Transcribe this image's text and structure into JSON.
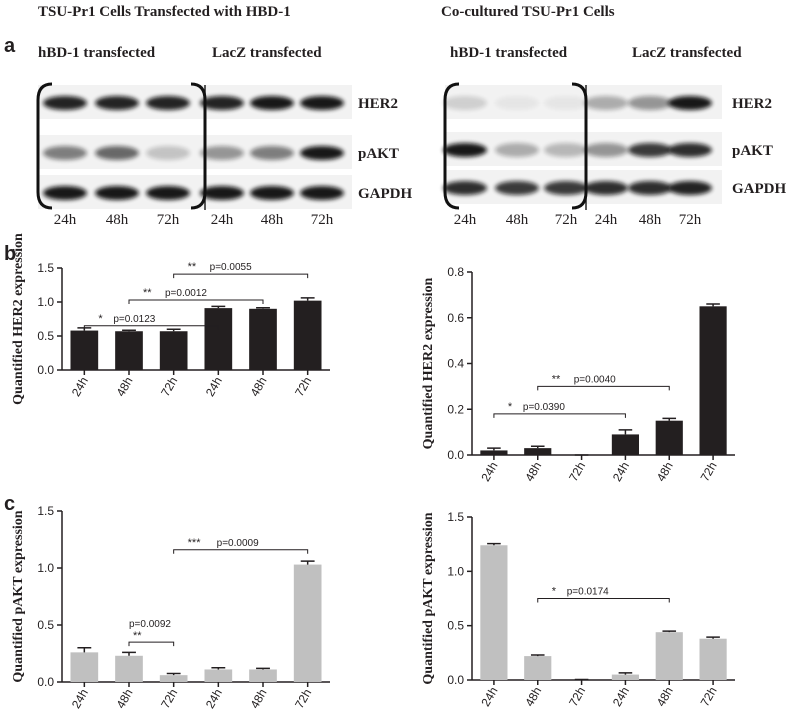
{
  "figure": {
    "panel_labels": [
      "a",
      "b",
      "c"
    ]
  },
  "blots": [
    {
      "title": "TSU-Pr1 Cells Transfected with HBD-1",
      "groups": [
        "hBD-1 transfected",
        "LacZ transfected"
      ],
      "rows": [
        "HER2",
        "pAKT",
        "GAPDH"
      ],
      "lanes": [
        "24h",
        "48h",
        "72h",
        "24h",
        "48h",
        "72h"
      ]
    },
    {
      "title": "Co-cultured TSU-Pr1 Cells",
      "groups": [
        "hBD-1 transfected",
        "LacZ transfected"
      ],
      "rows": [
        "HER2",
        "pAKT",
        "GAPDH"
      ],
      "lanes": [
        "24h",
        "48h",
        "72h",
        "24h",
        "48h",
        "72h"
      ]
    }
  ],
  "chart_data": [
    {
      "type": "bar",
      "y_label": "Quantified HER2 expression",
      "categories": [
        "24h",
        "48h",
        "72h",
        "24h",
        "48h",
        "72h"
      ],
      "values": [
        0.58,
        0.57,
        0.57,
        0.91,
        0.9,
        1.02
      ],
      "errors": [
        0.04,
        0.015,
        0.03,
        0.025,
        0.015,
        0.04
      ],
      "color": "#231f20",
      "ylim": [
        0,
        1.5
      ],
      "yticks": [
        {
          "value": 0,
          "label": "0.0"
        },
        0.5,
        {
          "value": 1,
          "label": "1.0"
        },
        1.5
      ],
      "annotations": [
        {
          "from": 0,
          "to": 3,
          "y": 0.65,
          "stars": "*",
          "text": "p=0.0123"
        },
        {
          "from": 1,
          "to": 4,
          "y": 1.03,
          "stars": "**",
          "text": "p=0.0012"
        },
        {
          "from": 2,
          "to": 5,
          "y": 1.41,
          "stars": "**",
          "text": "p=0.0055"
        }
      ]
    },
    {
      "type": "bar",
      "y_label": "Quantified HER2 expression",
      "categories": [
        "24h",
        "48h",
        "72h",
        "24h",
        "48h",
        "72h"
      ],
      "values": [
        0.02,
        0.03,
        0,
        0.09,
        0.15,
        0.65
      ],
      "errors": [
        0.01,
        0.008,
        0,
        0.02,
        0.01,
        0.01
      ],
      "color": "#231f20",
      "ylim": [
        0,
        0.8
      ],
      "yticks": [
        {
          "value": 0,
          "label": "0.0"
        },
        0.2,
        0.4,
        0.6,
        0.8
      ],
      "annotations": [
        {
          "from": 1,
          "to": 4,
          "y": 0.3,
          "stars": "**",
          "text": "p=0.0040"
        },
        {
          "from": 0,
          "to": 3,
          "y": 0.18,
          "stars": "*",
          "text": "p=0.0390"
        }
      ]
    },
    {
      "type": "bar",
      "y_label": "Quantified pAKT expression",
      "categories": [
        "24h",
        "48h",
        "72h",
        "24h",
        "48h",
        "72h"
      ],
      "values": [
        0.26,
        0.23,
        0.06,
        0.11,
        0.11,
        1.03
      ],
      "errors": [
        0.04,
        0.03,
        0.015,
        0.015,
        0.01,
        0.03
      ],
      "color": "#c0c0c0",
      "ylim": [
        0,
        1.5
      ],
      "yticks": [
        {
          "value": 0,
          "label": "0.0"
        },
        0.5,
        {
          "value": 1,
          "label": "1.0"
        },
        1.5
      ],
      "annotations": [
        {
          "from": 2,
          "to": 5,
          "y": 1.16,
          "stars": "***",
          "text": "p=0.0009"
        },
        {
          "from": 1,
          "to": 2,
          "y": 0.35,
          "stars": "**",
          "text": "p=0.0092"
        }
      ]
    },
    {
      "type": "bar",
      "y_label": "Quantified pAKT expression",
      "categories": [
        "24h",
        "48h",
        "72h",
        "24h",
        "48h",
        "72h"
      ],
      "values": [
        1.24,
        0.22,
        0,
        0.05,
        0.44,
        0.38
      ],
      "errors": [
        0.015,
        0.01,
        0.005,
        0.015,
        0.01,
        0.015
      ],
      "color": "#c0c0c0",
      "ylim": [
        0,
        1.5
      ],
      "yticks": [
        {
          "value": 0,
          "label": "0.0"
        },
        0.5,
        {
          "value": 1,
          "label": "1.0"
        },
        1.5
      ],
      "annotations": [
        {
          "from": 1,
          "to": 4,
          "y": 0.75,
          "stars": "*",
          "text": "p=0.0174"
        }
      ]
    }
  ]
}
